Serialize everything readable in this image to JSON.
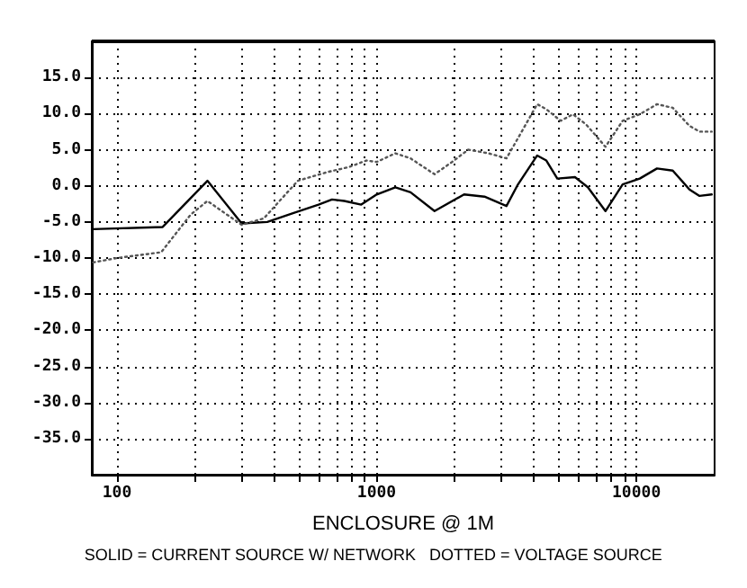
{
  "chart_data": {
    "type": "line",
    "xlabel": "ENCLOSURE @ 1M",
    "annotations": [
      "SOLID = CURRENT SOURCE W/ NETWORK   DOTTED = VOLTAGE SOURCE"
    ],
    "log": "x",
    "grid": true,
    "marker": "none",
    "xlim": [
      80,
      20000
    ],
    "xticks": [
      100,
      {
        "value": 200,
        "label": null
      },
      {
        "value": 300,
        "label": null
      },
      {
        "value": 400,
        "label": null
      },
      {
        "value": 500,
        "label": null
      },
      {
        "value": 600,
        "label": null
      },
      {
        "value": 700,
        "label": null
      },
      {
        "value": 800,
        "label": null
      },
      {
        "value": 900,
        "label": null
      },
      1000,
      {
        "value": 2000,
        "label": null
      },
      {
        "value": 3000,
        "label": null
      },
      {
        "value": 4000,
        "label": null
      },
      {
        "value": 5000,
        "label": null
      },
      {
        "value": 6000,
        "label": null
      },
      {
        "value": 7000,
        "label": null
      },
      {
        "value": 8000,
        "label": null
      },
      {
        "value": 9000,
        "label": null
      },
      10000
    ],
    "ylim": [
      -40,
      20
    ],
    "yticks": [
      {
        "value": -35,
        "label": "-35.0"
      },
      {
        "value": -30,
        "label": "-30.0"
      },
      {
        "value": -25,
        "label": "-25.0"
      },
      {
        "value": -20,
        "label": "-20.0"
      },
      {
        "value": -15,
        "label": "-15.0"
      },
      {
        "value": -10,
        "label": "-10.0"
      },
      {
        "value": -5,
        "label": "-5.0"
      },
      {
        "value": 0,
        "label": "0.0"
      },
      {
        "value": 5,
        "label": "5.0"
      },
      {
        "value": 10,
        "label": "10.0"
      },
      {
        "value": 15,
        "label": "15.0"
      }
    ],
    "series": [
      {
        "color": "#000000",
        "line_style": "solid",
        "x": [
          81,
          150,
          223,
          302,
          379,
          476,
          597,
          673,
          750,
          872,
          1000,
          1180,
          1350,
          1670,
          2170,
          2600,
          3160,
          3500,
          4150,
          4500,
          4960,
          5800,
          6500,
          7600,
          8850,
          10300,
          12000,
          13800,
          16000,
          17500,
          19500
        ],
        "values": [
          -6,
          -5.7,
          0.7,
          -5.2,
          -5,
          -3.8,
          -2.6,
          -1.9,
          -2.1,
          -2.6,
          -1.2,
          -0.2,
          -0.9,
          -3.5,
          -1.2,
          -1.5,
          -2.8,
          0.2,
          4.2,
          3.5,
          1,
          1.2,
          -0.2,
          -3.5,
          0.2,
          1,
          2.4,
          2.1,
          -0.5,
          -1.4,
          -1.2
        ]
      },
      {
        "color": "#555555",
        "line_style": "dotted",
        "x": [
          81,
          100,
          148,
          192,
          223,
          302,
          368,
          497,
          645,
          783,
          912,
          1000,
          1180,
          1350,
          1670,
          1950,
          2250,
          2700,
          3160,
          3500,
          4150,
          4500,
          5110,
          5700,
          6400,
          7600,
          8850,
          10300,
          12000,
          13800,
          16000,
          17500,
          19500
        ],
        "values": [
          -10.6,
          -10,
          -9.2,
          -4,
          -2.1,
          -5.4,
          -4.5,
          0.7,
          1.9,
          2.6,
          3.5,
          3.3,
          4.5,
          3.8,
          1.6,
          3.3,
          5,
          4.5,
          3.8,
          6.6,
          11.3,
          10.6,
          9,
          9.9,
          8.5,
          5.4,
          9,
          9.9,
          11.3,
          10.8,
          8.3,
          7.5,
          7.5
        ]
      }
    ]
  }
}
